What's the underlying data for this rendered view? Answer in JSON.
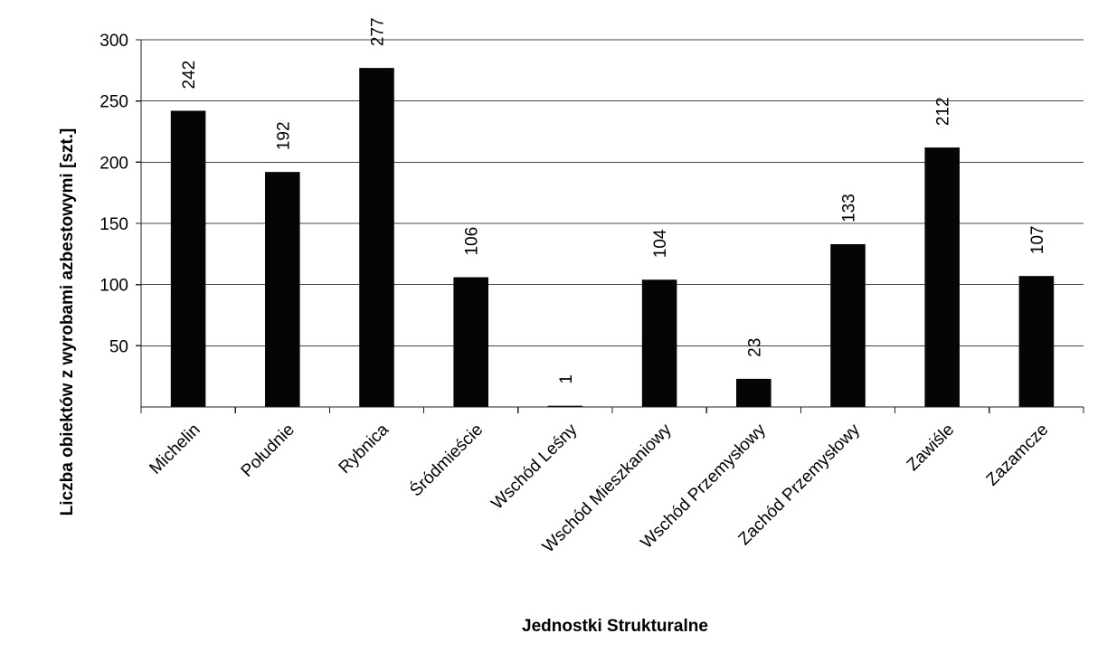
{
  "chart_data": {
    "type": "bar",
    "categories": [
      "Michelin",
      "Południe",
      "Rybnica",
      "Śródmieście",
      "Wschód Leśny",
      "Wschód Mieszkaniowy",
      "Wschód Przemysłowy",
      "Zachód Przemysłowy",
      "Zawiśle",
      "Zazamcze"
    ],
    "values": [
      242,
      192,
      277,
      106,
      1,
      104,
      23,
      133,
      212,
      107
    ],
    "data_labels": [
      "242",
      "192",
      "277",
      "106",
      "1",
      "104",
      "23",
      "133",
      "212",
      "107"
    ],
    "xlabel": "Jednostki Strukturalne",
    "ylabel": "Liczba obiektów z wyrobami azbestowymi [szt.]",
    "ylim": [
      0,
      300
    ],
    "yticks": [
      50,
      100,
      150,
      200,
      250,
      300
    ],
    "ytick_labels": [
      "50",
      "100",
      "150",
      "200",
      "250",
      "300"
    ],
    "grid": true,
    "legend": "none",
    "bar_color": "#050505"
  }
}
